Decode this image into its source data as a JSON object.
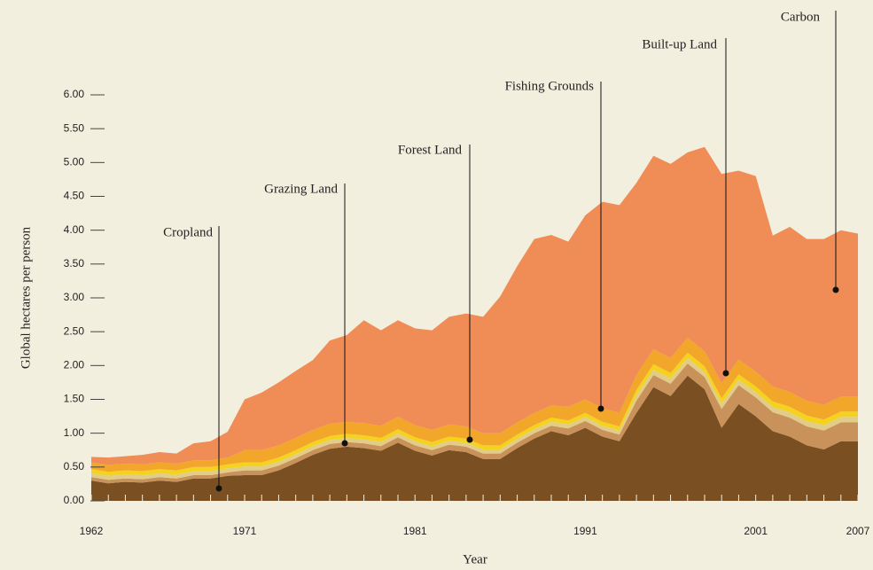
{
  "chart_data": {
    "type": "stacked_area",
    "xlabel": "Year",
    "ylabel": "Global hectares per person",
    "x": [
      1962,
      1963,
      1964,
      1965,
      1966,
      1967,
      1968,
      1969,
      1970,
      1971,
      1972,
      1973,
      1974,
      1975,
      1976,
      1977,
      1978,
      1979,
      1980,
      1981,
      1982,
      1983,
      1984,
      1985,
      1986,
      1987,
      1988,
      1989,
      1990,
      1991,
      1992,
      1993,
      1994,
      1995,
      1996,
      1997,
      1998,
      1999,
      2000,
      2001,
      2002,
      2003,
      2004,
      2005,
      2006,
      2007
    ],
    "xlim": [
      1962,
      2007
    ],
    "xticks": [
      1962,
      1971,
      1981,
      1991,
      2001,
      2007
    ],
    "ylim": [
      0,
      6
    ],
    "yticks": [
      {
        "value": 0,
        "label": "0.00"
      },
      {
        "value": 0.5,
        "label": "0.50"
      },
      {
        "value": 1,
        "label": "1.00"
      },
      {
        "value": 1.5,
        "label": "1.50"
      },
      {
        "value": 2,
        "label": "2.00"
      },
      {
        "value": 2.5,
        "label": "2.50"
      },
      {
        "value": 3,
        "label": "3.00"
      },
      {
        "value": 3.5,
        "label": "3.50"
      },
      {
        "value": 4,
        "label": "4.00"
      },
      {
        "value": 4.5,
        "label": "4.50"
      },
      {
        "value": 5,
        "label": "5.00"
      },
      {
        "value": 5.5,
        "label": "5.50"
      },
      {
        "value": 6,
        "label": "6.00"
      }
    ],
    "series": [
      {
        "name": "Cropland",
        "color": "#7a5022",
        "values": [
          0.3,
          0.26,
          0.28,
          0.27,
          0.3,
          0.28,
          0.33,
          0.33,
          0.37,
          0.38,
          0.38,
          0.45,
          0.56,
          0.68,
          0.77,
          0.8,
          0.78,
          0.74,
          0.86,
          0.74,
          0.67,
          0.75,
          0.72,
          0.62,
          0.62,
          0.78,
          0.92,
          1.03,
          0.97,
          1.08,
          0.95,
          0.88,
          1.3,
          1.68,
          1.55,
          1.85,
          1.65,
          1.08,
          1.43,
          1.25,
          1.03,
          0.95,
          0.82,
          0.76,
          0.88,
          0.88
        ]
      },
      {
        "name": "Grazing Land",
        "color": "#c8925a",
        "values": [
          0.05,
          0.05,
          0.05,
          0.05,
          0.05,
          0.05,
          0.05,
          0.05,
          0.05,
          0.07,
          0.07,
          0.07,
          0.07,
          0.07,
          0.07,
          0.07,
          0.07,
          0.07,
          0.08,
          0.08,
          0.08,
          0.08,
          0.08,
          0.08,
          0.08,
          0.08,
          0.08,
          0.08,
          0.1,
          0.1,
          0.1,
          0.1,
          0.18,
          0.18,
          0.18,
          0.18,
          0.18,
          0.28,
          0.28,
          0.28,
          0.28,
          0.28,
          0.28,
          0.28,
          0.28,
          0.28
        ]
      },
      {
        "name": "Forest Land",
        "color": "#e2cd88",
        "values": [
          0.06,
          0.06,
          0.06,
          0.06,
          0.06,
          0.06,
          0.06,
          0.06,
          0.06,
          0.06,
          0.06,
          0.06,
          0.06,
          0.06,
          0.06,
          0.06,
          0.06,
          0.06,
          0.06,
          0.06,
          0.06,
          0.06,
          0.06,
          0.06,
          0.06,
          0.06,
          0.06,
          0.06,
          0.06,
          0.06,
          0.06,
          0.06,
          0.08,
          0.08,
          0.08,
          0.08,
          0.08,
          0.08,
          0.08,
          0.08,
          0.08,
          0.08,
          0.08,
          0.08,
          0.08,
          0.08
        ]
      },
      {
        "name": "Fishing Grounds",
        "color": "#f5d21e",
        "values": [
          0.06,
          0.06,
          0.06,
          0.06,
          0.06,
          0.06,
          0.06,
          0.06,
          0.06,
          0.06,
          0.06,
          0.06,
          0.06,
          0.06,
          0.06,
          0.06,
          0.06,
          0.06,
          0.06,
          0.06,
          0.06,
          0.06,
          0.06,
          0.06,
          0.06,
          0.06,
          0.06,
          0.06,
          0.06,
          0.06,
          0.06,
          0.06,
          0.08,
          0.08,
          0.08,
          0.08,
          0.08,
          0.08,
          0.08,
          0.08,
          0.08,
          0.08,
          0.08,
          0.08,
          0.08,
          0.08
        ]
      },
      {
        "name": "Built-up Land",
        "color": "#f2a62a",
        "values": [
          0.1,
          0.1,
          0.1,
          0.1,
          0.1,
          0.1,
          0.1,
          0.1,
          0.1,
          0.18,
          0.18,
          0.18,
          0.18,
          0.18,
          0.18,
          0.18,
          0.18,
          0.18,
          0.18,
          0.18,
          0.18,
          0.18,
          0.18,
          0.18,
          0.18,
          0.18,
          0.18,
          0.18,
          0.2,
          0.2,
          0.2,
          0.2,
          0.22,
          0.22,
          0.22,
          0.22,
          0.22,
          0.22,
          0.22,
          0.22,
          0.22,
          0.22,
          0.22,
          0.22,
          0.22,
          0.22
        ]
      },
      {
        "name": "Carbon",
        "color": "#f08c56",
        "values": [
          0.08,
          0.11,
          0.11,
          0.14,
          0.15,
          0.15,
          0.25,
          0.28,
          0.38,
          0.75,
          0.85,
          0.93,
          0.99,
          1.03,
          1.23,
          1.28,
          1.52,
          1.41,
          1.43,
          1.43,
          1.47,
          1.59,
          1.67,
          1.72,
          2.02,
          2.31,
          2.57,
          2.52,
          2.44,
          2.72,
          3.05,
          3.07,
          2.84,
          2.86,
          2.87,
          2.74,
          3.02,
          3.09,
          2.79,
          2.89,
          2.23,
          2.44,
          2.39,
          2.45,
          2.46,
          2.41
        ]
      }
    ]
  }
}
